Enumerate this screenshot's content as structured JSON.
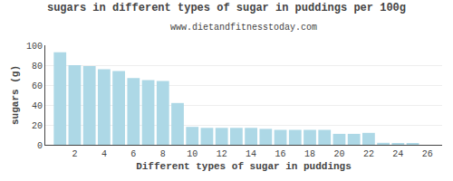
{
  "chart_data": {
    "type": "bar",
    "title": "sugars in different types of sugar in puddings per 100g",
    "subtitle": "www.dietandfitnesstoday.com",
    "xlabel": "Different types of sugar in puddings",
    "ylabel": "sugars (g)",
    "x": [
      1,
      2,
      3,
      4,
      5,
      6,
      7,
      8,
      9,
      10,
      11,
      12,
      13,
      14,
      15,
      16,
      17,
      18,
      19,
      20,
      21,
      22,
      23,
      24,
      25
    ],
    "values": [
      93,
      80,
      79,
      76,
      74,
      67,
      65,
      64,
      42,
      18,
      17,
      17,
      17,
      17,
      16,
      15,
      15,
      15,
      15,
      11,
      11,
      12,
      2,
      1,
      1
    ],
    "color": "#add8e6",
    "xlim": [
      0,
      27
    ],
    "xticks": [
      2,
      4,
      6,
      8,
      10,
      12,
      14,
      16,
      18,
      20,
      22,
      24,
      26
    ],
    "ylim": [
      0,
      100
    ],
    "yticks": [
      0,
      20,
      40,
      60,
      80,
      100
    ],
    "grid": true
  }
}
